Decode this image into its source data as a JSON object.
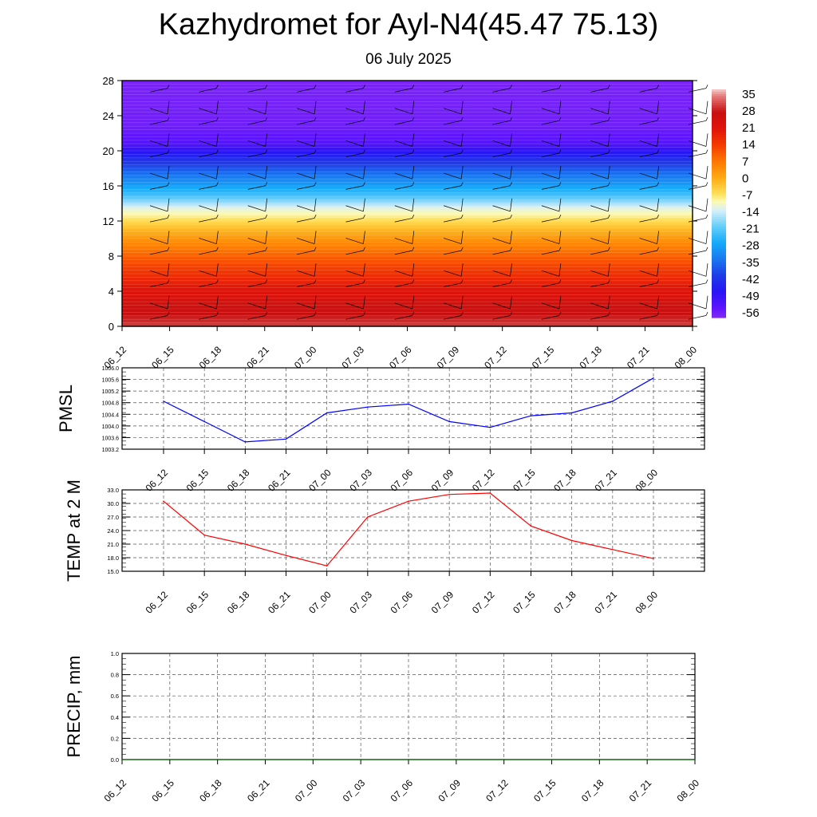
{
  "title": "Kazhydromet for Ayl-N4(45.47 75.13)",
  "subtitle": "06 July 2025",
  "colors": {
    "pmsl_line": "#0000ff",
    "temp_line": "#ff0000",
    "precip_line": "#006400",
    "grid": "#555555",
    "axis": "#000000",
    "barb": "#000000"
  },
  "chart_data": [
    {
      "type": "heatmap",
      "name": "cross-section",
      "title": "",
      "xlabel": "",
      "ylabel": "",
      "x_tick_labels": [
        "06_12",
        "06_15",
        "06_18",
        "06_21",
        "07_00",
        "07_03",
        "07_06",
        "07_09",
        "07_12",
        "07_15",
        "07_18",
        "07_21",
        "08_00"
      ],
      "y_ticks": [
        0,
        4,
        8,
        12,
        16,
        20,
        24,
        28
      ],
      "ylim": [
        0,
        28
      ],
      "colorbar_labels": [
        "35",
        "28",
        "21",
        "14",
        "7",
        "0",
        "-7",
        "-14",
        "-21",
        "-28",
        "-35",
        "-42",
        "-49",
        "-56"
      ],
      "colorbar_range": [
        -60,
        38
      ],
      "temperature_profile": [
        {
          "h": 0,
          "t": 31
        },
        {
          "h": 2,
          "t": 27
        },
        {
          "h": 4,
          "t": 22
        },
        {
          "h": 6,
          "t": 16
        },
        {
          "h": 8,
          "t": 10
        },
        {
          "h": 10,
          "t": 3
        },
        {
          "h": 12,
          "t": -6
        },
        {
          "h": 13.5,
          "t": -13
        },
        {
          "h": 15,
          "t": -24
        },
        {
          "h": 17,
          "t": -34
        },
        {
          "h": 19,
          "t": -44
        },
        {
          "h": 21,
          "t": -55
        },
        {
          "h": 23,
          "t": -58
        },
        {
          "h": 28,
          "t": -59
        }
      ],
      "wind_barbs": "present at each time step and level"
    },
    {
      "type": "line",
      "name": "pmsl",
      "ylabel": "PMSL",
      "categories": [
        "06_12",
        "06_15",
        "06_18",
        "06_21",
        "07_00",
        "07_03",
        "07_06",
        "07_09",
        "07_12",
        "07_15",
        "07_18",
        "07_21",
        "08_00"
      ],
      "values": [
        1004.85,
        1004.15,
        1003.45,
        1003.55,
        1004.45,
        1004.65,
        1004.75,
        1004.15,
        1003.95,
        1004.35,
        1004.45,
        1004.85,
        1005.65
      ],
      "ylim": [
        1003.2,
        1006.0
      ],
      "y_ticks": [
        1003.2,
        1003.6,
        1004.0,
        1004.4,
        1004.8,
        1005.2,
        1005.6,
        1006.0
      ],
      "y_tick_labels": [
        "1003.2",
        "1003.6",
        "1004.0",
        "1004.4",
        "1004.8",
        "1005.2",
        "1005.6",
        "1006.0"
      ],
      "grid": true
    },
    {
      "type": "line",
      "name": "temp-2m",
      "ylabel": "TEMP at 2 M",
      "categories": [
        "06_12",
        "06_15",
        "06_18",
        "06_21",
        "07_00",
        "07_03",
        "07_06",
        "07_09",
        "07_12",
        "07_15",
        "07_18",
        "07_21",
        "08_00"
      ],
      "values": [
        30.5,
        23.0,
        21.0,
        18.5,
        16.2,
        27.0,
        30.5,
        32.0,
        32.3,
        25.0,
        21.8,
        19.8,
        17.8
      ],
      "ylim": [
        15.0,
        33.0
      ],
      "y_ticks": [
        15,
        18,
        21,
        24,
        27,
        30,
        33
      ],
      "y_tick_labels": [
        "15.0",
        "18.0",
        "21.0",
        "24.0",
        "27.0",
        "30.0",
        "33.0"
      ],
      "grid": true
    },
    {
      "type": "line",
      "name": "precip",
      "ylabel": "PRECIP, mm",
      "categories": [
        "06_12",
        "06_15",
        "06_18",
        "06_21",
        "07_00",
        "07_03",
        "07_06",
        "07_09",
        "07_12",
        "07_15",
        "07_18",
        "07_21",
        "08_00"
      ],
      "values": [
        0,
        0,
        0,
        0,
        0,
        0,
        0,
        0,
        0,
        0,
        0,
        0,
        0
      ],
      "ylim": [
        0.0,
        1.0
      ],
      "y_ticks": [
        0,
        0.2,
        0.4,
        0.6,
        0.8,
        1.0
      ],
      "y_tick_labels": [
        "0.0",
        "0.2",
        "0.4",
        "0.6",
        "0.8",
        "1.0"
      ],
      "grid": true
    }
  ]
}
